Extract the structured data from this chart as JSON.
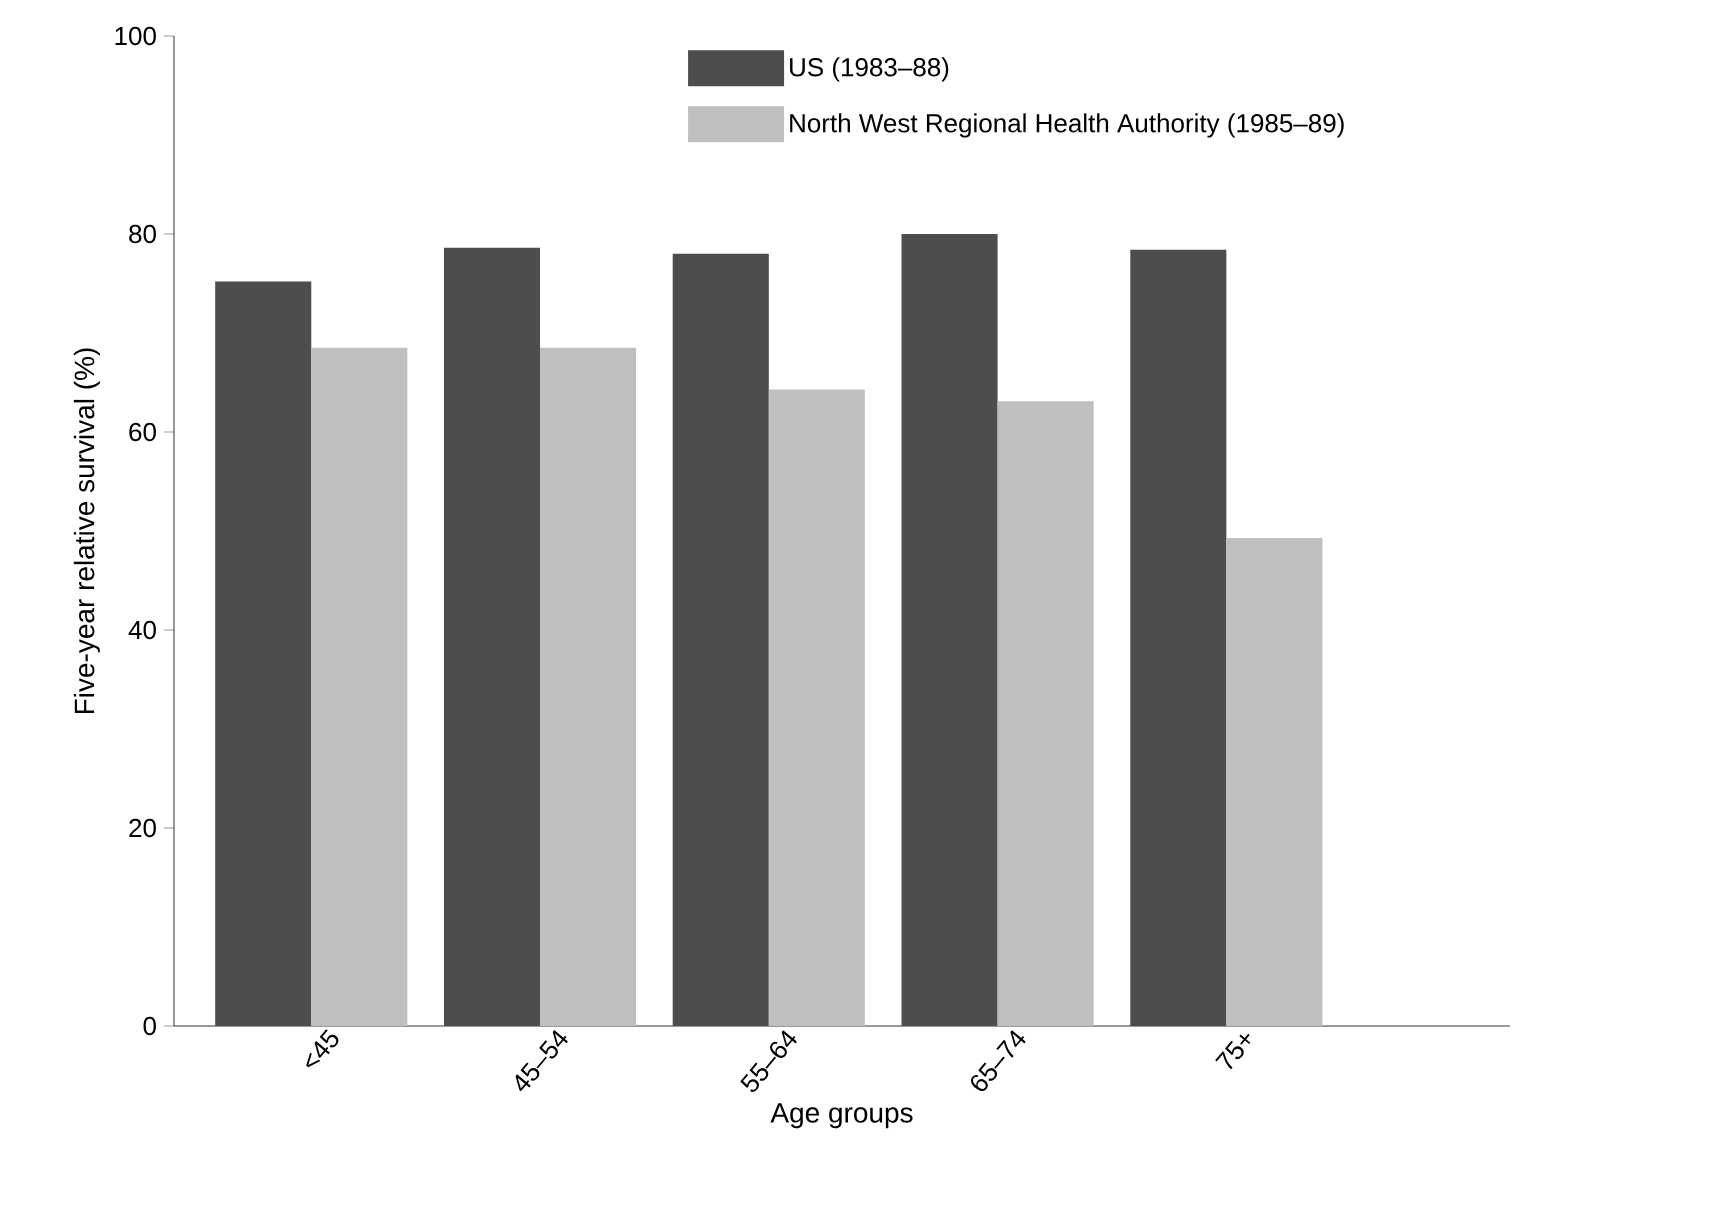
{
  "chart_data": {
    "type": "bar",
    "xlabel": "Age groups",
    "ylabel": "Five-year relative survival (%)",
    "categories": [
      "<45",
      "45–54",
      "55–64",
      "65–74",
      "75+"
    ],
    "series": [
      {
        "name": "US (1983–88)",
        "color": "#4d4d4d",
        "values": [
          75.2,
          78.6,
          78.0,
          80.0,
          78.4
        ]
      },
      {
        "name": "North West Regional Health Authority (1985–89)",
        "color": "#bfbfbf",
        "values": [
          68.5,
          68.5,
          64.3,
          63.1,
          49.3
        ]
      }
    ],
    "ylim": [
      0,
      100
    ],
    "yticks": [
      0,
      20,
      40,
      60,
      80,
      100
    ],
    "grid": false,
    "legend": "top"
  }
}
